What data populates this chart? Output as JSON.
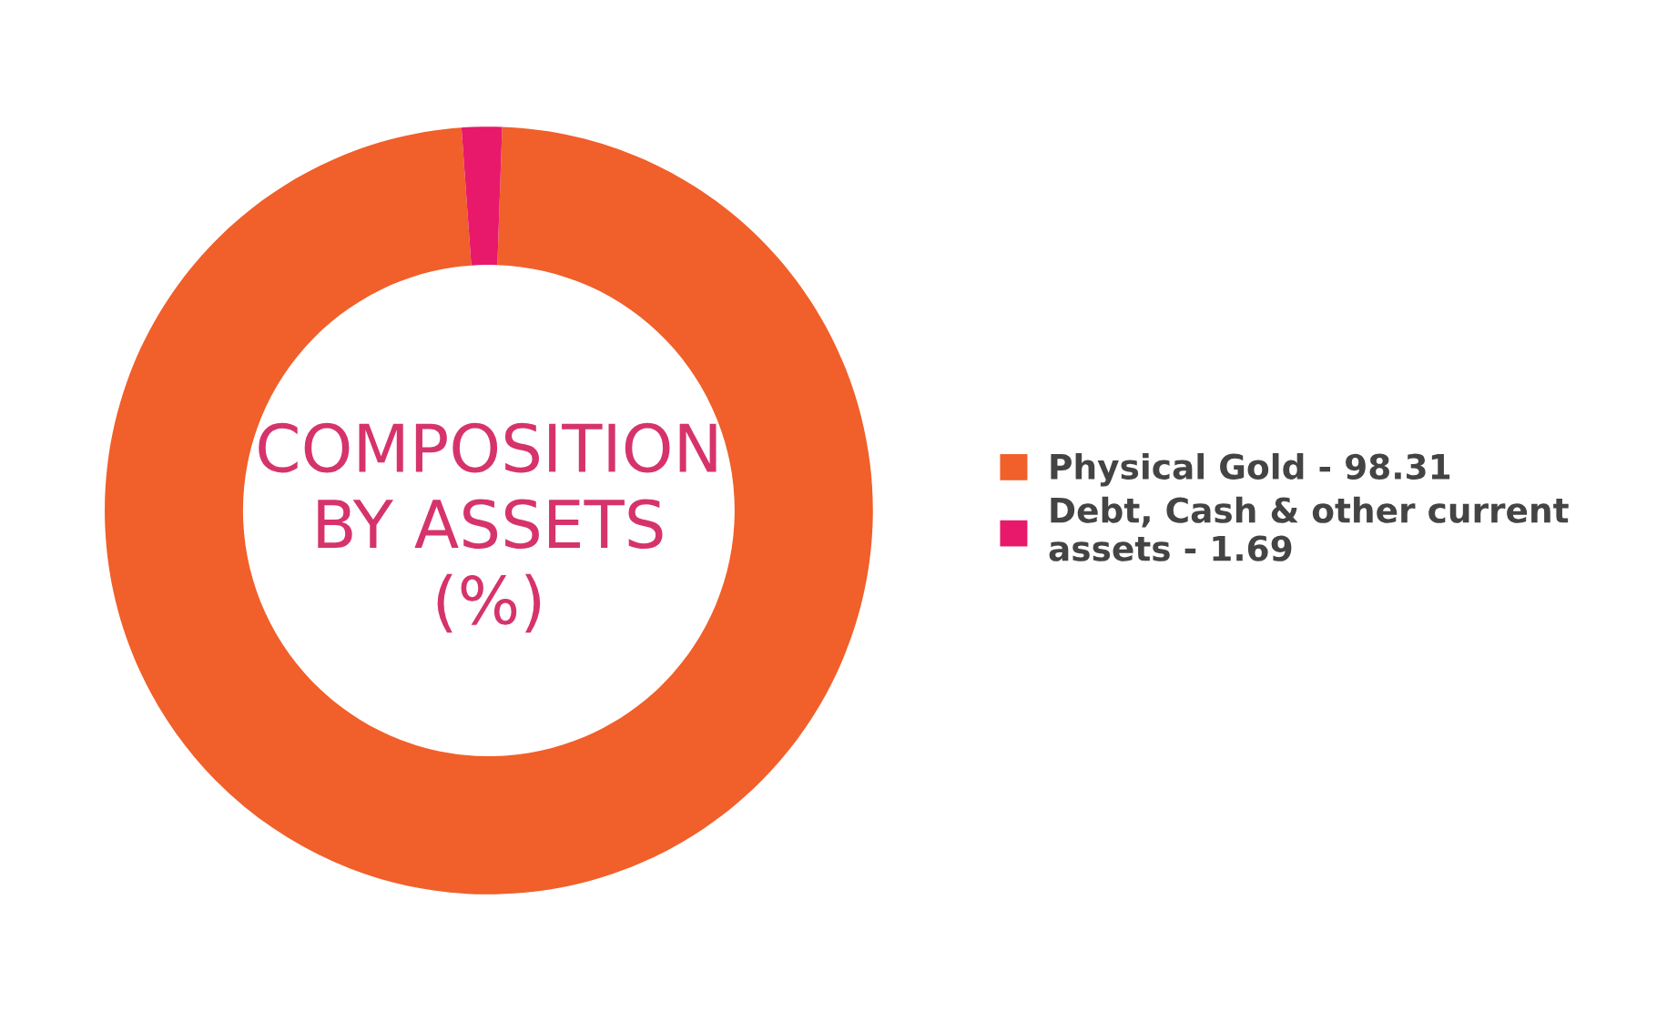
{
  "chart_data": {
    "type": "donut",
    "title": "COMPOSITION\nBY ASSETS\n(%)",
    "categories": [
      "Physical Gold - 98.31",
      "Debt, Cash & other current\nassets - 1.69"
    ],
    "values": [
      98.31,
      1.69
    ],
    "colors": [
      "#f15f2a",
      "#e8196a"
    ],
    "legend": "right"
  }
}
